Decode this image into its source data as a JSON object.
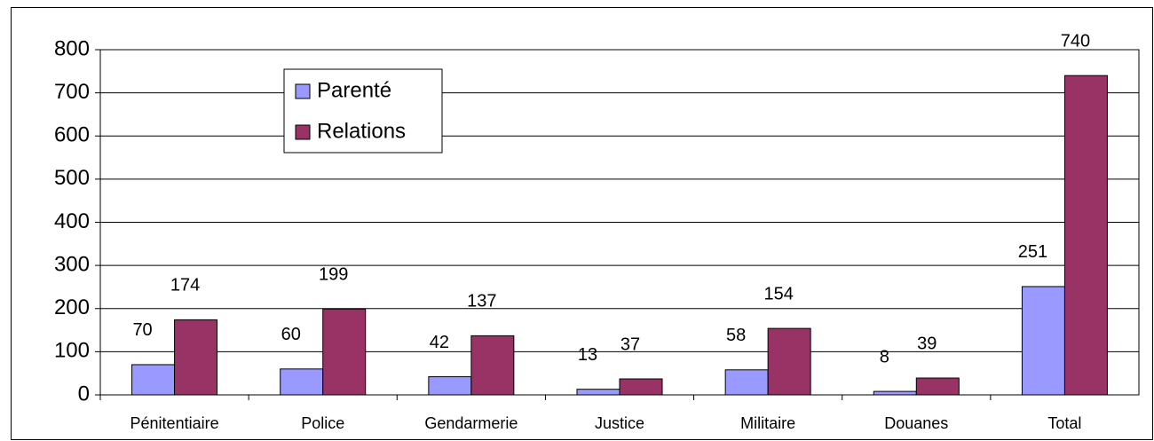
{
  "chart_data": {
    "type": "bar",
    "categories": [
      "Pénitentiaire",
      "Police",
      "Gendarmerie",
      "Justice",
      "Militaire",
      "Douanes",
      "Total"
    ],
    "series": [
      {
        "name": "Parenté",
        "color": "#9999ff",
        "values": [
          70,
          60,
          42,
          13,
          58,
          8,
          251
        ]
      },
      {
        "name": "Relations",
        "color": "#993366",
        "values": [
          174,
          199,
          137,
          37,
          154,
          39,
          740
        ]
      }
    ],
    "ylim": [
      0,
      800
    ],
    "yticks": [
      0,
      100,
      200,
      300,
      400,
      500,
      600,
      700,
      800
    ],
    "grid": true,
    "legend": "upper left"
  }
}
